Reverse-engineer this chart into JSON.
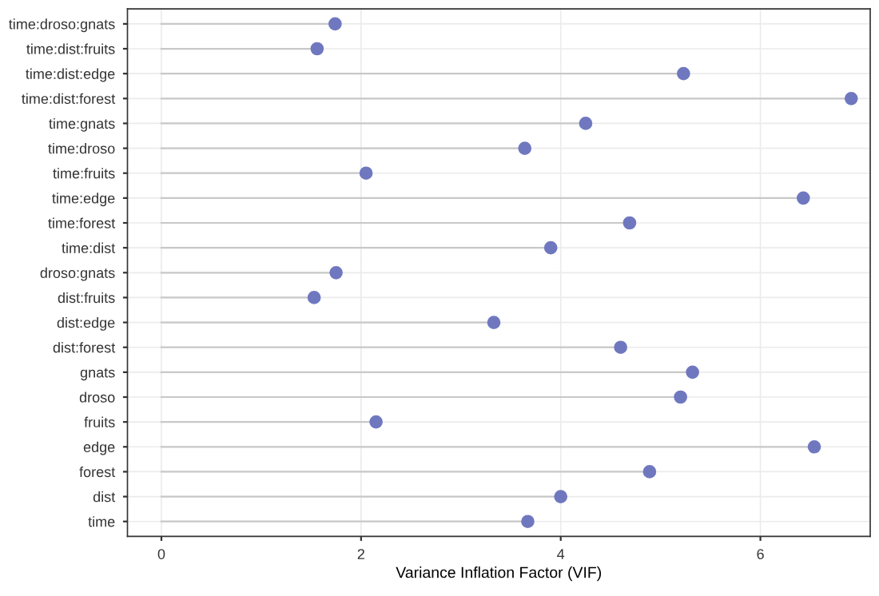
{
  "chart_data": {
    "type": "lollipop",
    "orientation": "horizontal",
    "xlabel": "Variance Inflation Factor (VIF)",
    "categories": [
      "time:droso:gnats",
      "time:dist:fruits",
      "time:dist:edge",
      "time:dist:forest",
      "time:gnats",
      "time:droso",
      "time:fruits",
      "time:edge",
      "time:forest",
      "time:dist",
      "droso:gnats",
      "dist:fruits",
      "dist:edge",
      "dist:forest",
      "gnats",
      "droso",
      "fruits",
      "edge",
      "forest",
      "dist",
      "time"
    ],
    "values": [
      1.74,
      1.56,
      5.23,
      6.91,
      4.25,
      3.64,
      2.05,
      6.43,
      4.69,
      3.9,
      1.75,
      1.53,
      3.33,
      4.6,
      5.32,
      5.2,
      2.15,
      6.54,
      4.89,
      4.0,
      3.67
    ],
    "color": "#6f78bf",
    "xlim": [
      -0.34,
      7.1
    ],
    "xticks": [
      0,
      2,
      4,
      6
    ],
    "grid": true,
    "marker": "circle"
  }
}
